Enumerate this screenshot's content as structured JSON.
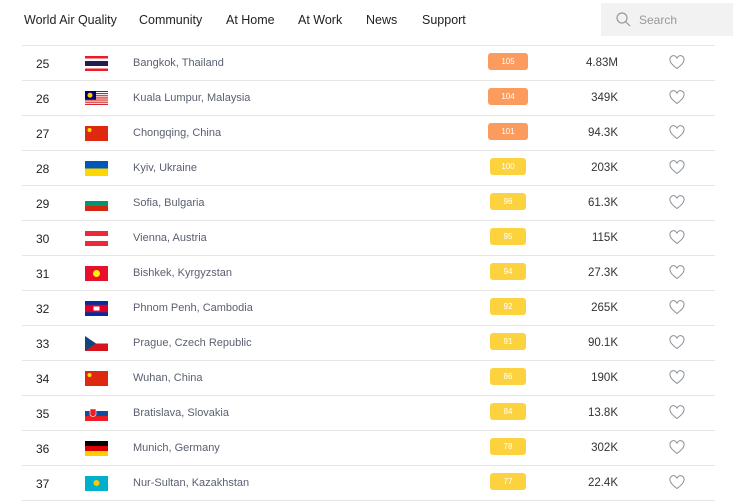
{
  "nav": {
    "items": [
      "World Air Quality",
      "Community",
      "At Home",
      "At Work",
      "News",
      "Support"
    ],
    "search_placeholder": "Search"
  },
  "colors": {
    "orange": "#fb9b5e",
    "yellow": "#fcd33f"
  },
  "rows": [
    {
      "rank": "25",
      "flag": "thailand",
      "city": "Bangkok, Thailand",
      "aqi": "105",
      "level": "orange",
      "population": "4.83M"
    },
    {
      "rank": "26",
      "flag": "malaysia",
      "city": "Kuala Lumpur, Malaysia",
      "aqi": "104",
      "level": "orange",
      "population": "349K"
    },
    {
      "rank": "27",
      "flag": "china",
      "city": "Chongqing, China",
      "aqi": "101",
      "level": "orange",
      "population": "94.3K"
    },
    {
      "rank": "28",
      "flag": "ukraine",
      "city": "Kyiv, Ukraine",
      "aqi": "100",
      "level": "yellow",
      "population": "203K"
    },
    {
      "rank": "29",
      "flag": "bulgaria",
      "city": "Sofia, Bulgaria",
      "aqi": "96",
      "level": "yellow",
      "population": "61.3K"
    },
    {
      "rank": "30",
      "flag": "austria",
      "city": "Vienna, Austria",
      "aqi": "95",
      "level": "yellow",
      "population": "115K"
    },
    {
      "rank": "31",
      "flag": "kyrgyzstan",
      "city": "Bishkek, Kyrgyzstan",
      "aqi": "94",
      "level": "yellow",
      "population": "27.3K"
    },
    {
      "rank": "32",
      "flag": "cambodia",
      "city": "Phnom Penh, Cambodia",
      "aqi": "92",
      "level": "yellow",
      "population": "265K"
    },
    {
      "rank": "33",
      "flag": "czech",
      "city": "Prague, Czech Republic",
      "aqi": "91",
      "level": "yellow",
      "population": "90.1K"
    },
    {
      "rank": "34",
      "flag": "china",
      "city": "Wuhan, China",
      "aqi": "86",
      "level": "yellow",
      "population": "190K"
    },
    {
      "rank": "35",
      "flag": "slovakia",
      "city": "Bratislava, Slovakia",
      "aqi": "84",
      "level": "yellow",
      "population": "13.8K"
    },
    {
      "rank": "36",
      "flag": "germany",
      "city": "Munich, Germany",
      "aqi": "78",
      "level": "yellow",
      "population": "302K"
    },
    {
      "rank": "37",
      "flag": "kazakhstan",
      "city": "Nur-Sultan, Kazakhstan",
      "aqi": "77",
      "level": "yellow",
      "population": "22.4K"
    }
  ]
}
